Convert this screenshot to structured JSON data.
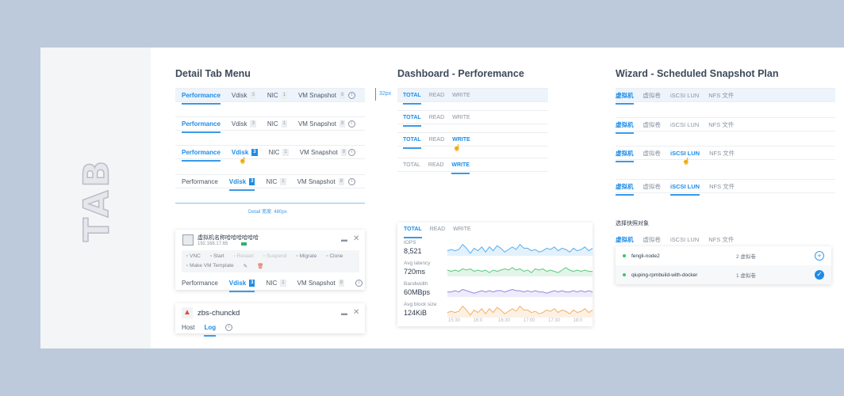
{
  "side_title": "TAB",
  "detail": {
    "title": "Detail Tab Menu",
    "height_note": "32px",
    "width_note": "Detail 宽度: 480px",
    "rows": [
      {
        "tabs": [
          {
            "label": "Performance",
            "state": "active"
          },
          {
            "label": "Vdisk",
            "badge": "3"
          },
          {
            "label": "NIC",
            "badge": "1"
          },
          {
            "label": "VM Snapshot",
            "badge": "8"
          }
        ]
      },
      {
        "tabs": [
          {
            "label": "Performance",
            "state": "active"
          },
          {
            "label": "Vdisk",
            "badge": "3"
          },
          {
            "label": "NIC",
            "badge": "1"
          },
          {
            "label": "VM Snapshot",
            "badge": "8"
          }
        ]
      },
      {
        "tabs": [
          {
            "label": "Performance",
            "state": "active"
          },
          {
            "label": "Vdisk",
            "badge": "3",
            "state": "hover"
          },
          {
            "label": "NIC",
            "badge": "1"
          },
          {
            "label": "VM Snapshot",
            "badge": "8"
          }
        ]
      },
      {
        "tabs": [
          {
            "label": "Performance"
          },
          {
            "label": "Vdisk",
            "badge": "3",
            "state": "active"
          },
          {
            "label": "NIC",
            "badge": "1"
          },
          {
            "label": "VM Snapshot",
            "badge": "8"
          }
        ]
      }
    ]
  },
  "vm_card": {
    "name": "虚拟机名称哈哈哈哈哈哈",
    "ip": "192.168.17.65",
    "actions": [
      "VNC",
      "Start",
      "Restart",
      "Suspend",
      "Migrate",
      "Clone",
      "Make VM Template"
    ],
    "tabs": [
      {
        "label": "Performance"
      },
      {
        "label": "Vdisk",
        "badge": "3",
        "state": "active"
      },
      {
        "label": "NIC",
        "badge": "1"
      },
      {
        "label": "VM Snapshot",
        "badge": "8"
      }
    ]
  },
  "host_card": {
    "name": "zbs-chunckd",
    "tabs": [
      {
        "label": "Host"
      },
      {
        "label": "Log",
        "state": "active"
      }
    ]
  },
  "dashboard": {
    "title": "Dashboard - Perforemance",
    "rows": [
      {
        "tabs": [
          {
            "label": "TOTAL",
            "state": "active"
          },
          {
            "label": "READ"
          },
          {
            "label": "WRITE"
          }
        ]
      },
      {
        "tabs": [
          {
            "label": "TOTAL",
            "state": "active"
          },
          {
            "label": "READ"
          },
          {
            "label": "WRITE"
          }
        ]
      },
      {
        "tabs": [
          {
            "label": "TOTAL",
            "state": "active"
          },
          {
            "label": "READ"
          },
          {
            "label": "WRITE",
            "state": "hover"
          }
        ]
      },
      {
        "tabs": [
          {
            "label": "TOTAL"
          },
          {
            "label": "READ"
          },
          {
            "label": "WRITE",
            "state": "active"
          }
        ]
      }
    ],
    "card": {
      "tabs": [
        {
          "label": "TOTAL",
          "state": "active"
        },
        {
          "label": "READ"
        },
        {
          "label": "WRITE"
        }
      ],
      "metrics": [
        {
          "label": "IOPS",
          "value": "8,521",
          "color": "#5aaeea",
          "fill": "#e3f1fc",
          "points": [
            4,
            5,
            4,
            5,
            9,
            6,
            2,
            6,
            4,
            7,
            3,
            7,
            4,
            8,
            6,
            3,
            5,
            7,
            5,
            9,
            6,
            6,
            4,
            5,
            3,
            4,
            6,
            5,
            7,
            4,
            6,
            5,
            3,
            6,
            4,
            5,
            7,
            4,
            6
          ]
        },
        {
          "label": "Avg latency",
          "value": "720ms",
          "color": "#5cc77e",
          "fill": "#e2f5e8",
          "points": [
            5,
            4,
            5,
            4,
            6,
            5,
            6,
            4,
            5,
            4,
            5,
            3,
            5,
            4,
            5,
            6,
            5,
            7,
            5,
            6,
            4,
            5,
            3,
            6,
            5,
            6,
            4,
            5,
            4,
            3,
            5,
            7,
            5,
            4,
            5,
            4,
            5,
            4,
            4
          ]
        },
        {
          "label": "Bandwidth",
          "value": "60MBps",
          "color": "#9a86e0",
          "fill": "#efebfb",
          "points": [
            4,
            4,
            5,
            4,
            6,
            5,
            4,
            3,
            4,
            5,
            4,
            5,
            4,
            5,
            5,
            4,
            5,
            6,
            5,
            5,
            4,
            5,
            4,
            5,
            4,
            4,
            3,
            4,
            5,
            4,
            5,
            4,
            4,
            5,
            4,
            5,
            4,
            5,
            4
          ]
        },
        {
          "label": "Avg block size",
          "value": "124KiB",
          "color": "#f0b06a",
          "fill": "#fdf1e4",
          "points": [
            4,
            5,
            4,
            5,
            9,
            6,
            2,
            6,
            4,
            7,
            3,
            7,
            4,
            8,
            6,
            3,
            5,
            7,
            5,
            9,
            6,
            6,
            4,
            5,
            3,
            4,
            6,
            5,
            7,
            4,
            6,
            5,
            3,
            6,
            4,
            5,
            7,
            4,
            6
          ]
        }
      ],
      "times": [
        "15:30",
        "16:0",
        "16:30",
        "17:00",
        "17:30",
        "18:0"
      ]
    }
  },
  "wizard": {
    "title": "Wizard - Scheduled Snapshot Plan",
    "rows": [
      {
        "tabs": [
          {
            "label": "虚拟机",
            "state": "active"
          },
          {
            "label": "虚拟卷"
          },
          {
            "label": "iSCSI LUN"
          },
          {
            "label": "NFS 文件"
          }
        ]
      },
      {
        "tabs": [
          {
            "label": "虚拟机",
            "state": "active"
          },
          {
            "label": "虚拟卷"
          },
          {
            "label": "iSCSI LUN"
          },
          {
            "label": "NFS 文件"
          }
        ]
      },
      {
        "tabs": [
          {
            "label": "虚拟机",
            "state": "active"
          },
          {
            "label": "虚拟卷"
          },
          {
            "label": "iSCSI LUN",
            "state": "hover"
          },
          {
            "label": "NFS 文件"
          }
        ]
      },
      {
        "tabs": [
          {
            "label": "虚拟机",
            "state": "active"
          },
          {
            "label": "虚拟卷"
          },
          {
            "label": "iSCSI LUN",
            "state": "active"
          },
          {
            "label": "NFS 文件"
          }
        ]
      }
    ],
    "select_label": "选择快照对象",
    "select_tabs": [
      {
        "label": "虚拟机",
        "state": "active"
      },
      {
        "label": "虚拟卷"
      },
      {
        "label": "iSCSI LUN"
      },
      {
        "label": "NFS 文件"
      }
    ],
    "items": [
      {
        "name": "fengli-node2",
        "count": "2 虚拟卷",
        "selected": false
      },
      {
        "name": "qiuping-rpmbuild-with-docker",
        "count": "1 虚拟卷",
        "selected": true
      }
    ]
  }
}
